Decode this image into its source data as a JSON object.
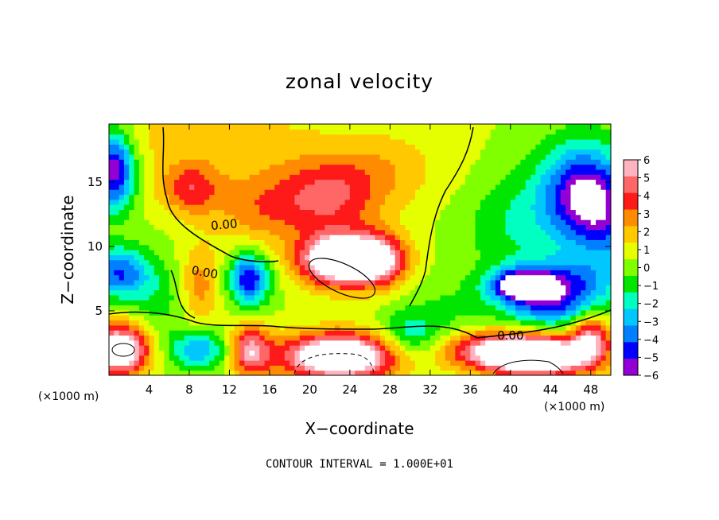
{
  "chart_data": {
    "type": "heatmap",
    "title": "zonal velocity",
    "xlabel": "X−coordinate",
    "ylabel": "Z−coordinate",
    "x_unit_label": "(×1000 m)",
    "x_ticks": [
      4,
      8,
      12,
      16,
      20,
      24,
      28,
      32,
      36,
      40,
      44,
      48
    ],
    "x_tick_labels": [
      "4",
      "8",
      "12",
      "16",
      "20",
      "24",
      "28",
      "32",
      "36",
      "40",
      "44",
      "48"
    ],
    "y_ticks": [
      5,
      10,
      15
    ],
    "y_tick_labels": [
      "5",
      "10",
      "15"
    ],
    "xlim": [
      0,
      50
    ],
    "ylim": [
      0,
      19.5
    ],
    "colorbar": {
      "levels": [
        6,
        5,
        4,
        3,
        2,
        1,
        0,
        -1,
        -2,
        -3,
        -4,
        -5,
        -6
      ],
      "labels": [
        "6",
        "5",
        "4",
        "3",
        "2",
        "1",
        "0",
        "−1",
        "−2",
        "−3",
        "−4",
        "−5",
        "−6"
      ],
      "colors": [
        "#ffb3c0",
        "#ff6666",
        "#ff1a1a",
        "#ff8c00",
        "#ffc800",
        "#e6ff00",
        "#80ff00",
        "#00e600",
        "#00ffc0",
        "#00c8ff",
        "#0080ff",
        "#0000ff",
        "#9400d3"
      ]
    },
    "contour_label": "0.00",
    "contour_interval_text": "CONTOUR INTERVAL = 1.000E+01",
    "field_blobs": [
      {
        "x": 10,
        "z": 18.5,
        "v": 1.5,
        "sx": 12,
        "sz": 3
      },
      {
        "x": 8,
        "z": 14.5,
        "v": 3.5,
        "sx": 3,
        "sz": 2
      },
      {
        "x": 15,
        "z": 13,
        "v": 2.5,
        "sx": 5,
        "sz": 3
      },
      {
        "x": 22,
        "z": 14,
        "v": 4,
        "sx": 5,
        "sz": 3
      },
      {
        "x": 23,
        "z": 9,
        "v": 9,
        "sx": 4,
        "sz": 2
      },
      {
        "x": 27,
        "z": 9,
        "v": 5,
        "sx": 3,
        "sz": 2
      },
      {
        "x": 28,
        "z": 16,
        "v": 1.5,
        "sx": 5,
        "sz": 3
      },
      {
        "x": 36,
        "z": 15,
        "v": 0.3,
        "sx": 4,
        "sz": 4
      },
      {
        "x": 40,
        "z": 12,
        "v": -2,
        "sx": 5,
        "sz": 4
      },
      {
        "x": 47,
        "z": 14,
        "v": -6.5,
        "sx": 4,
        "sz": 4
      },
      {
        "x": 45,
        "z": 7,
        "v": -5,
        "sx": 5,
        "sz": 2
      },
      {
        "x": 41,
        "z": 7,
        "v": -7,
        "sx": 3,
        "sz": 1.2
      },
      {
        "x": 50,
        "z": 12,
        "v": -3,
        "sx": 3,
        "sz": 4
      },
      {
        "x": 0.5,
        "z": 16,
        "v": -7,
        "sx": 2,
        "sz": 3
      },
      {
        "x": 1,
        "z": 8,
        "v": -5,
        "sx": 3,
        "sz": 2
      },
      {
        "x": 14,
        "z": 7.5,
        "v": -6,
        "sx": 2,
        "sz": 2
      },
      {
        "x": 9,
        "z": 7,
        "v": 2.5,
        "sx": 2,
        "sz": 3
      },
      {
        "x": 5,
        "z": 6,
        "v": -1.5,
        "sx": 3,
        "sz": 3
      },
      {
        "x": 1,
        "z": 2,
        "v": 8,
        "sx": 3,
        "sz": 2
      },
      {
        "x": 9,
        "z": 2,
        "v": -4,
        "sx": 3,
        "sz": 1.5
      },
      {
        "x": 14,
        "z": 2,
        "v": 5,
        "sx": 2,
        "sz": 2
      },
      {
        "x": 23,
        "z": 1.5,
        "v": 9,
        "sx": 6,
        "sz": 1.8
      },
      {
        "x": 30,
        "z": 3,
        "v": -3,
        "sx": 3,
        "sz": 2
      },
      {
        "x": 34,
        "z": 5,
        "v": -1,
        "sx": 4,
        "sz": 3
      },
      {
        "x": 38,
        "z": 2,
        "v": 5,
        "sx": 5,
        "sz": 1.5
      },
      {
        "x": 43,
        "z": 1.5,
        "v": 9,
        "sx": 5,
        "sz": 1.5
      },
      {
        "x": 48,
        "z": 3,
        "v": 5,
        "sx": 2,
        "sz": 2
      },
      {
        "x": 44,
        "z": 5,
        "v": -3,
        "sx": 5,
        "sz": 1.5
      }
    ]
  },
  "footer": {
    "contour_interval": "CONTOUR INTERVAL = 1.000E+01"
  }
}
